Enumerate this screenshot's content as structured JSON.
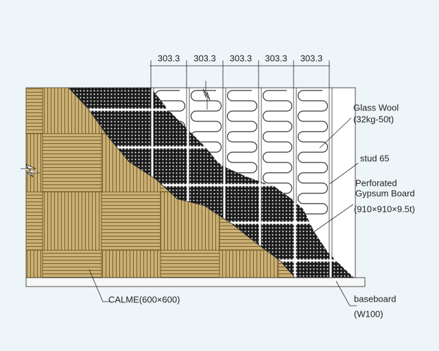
{
  "dimensions": [
    "303.3",
    "303.3",
    "303.3",
    "303.3",
    "303.3"
  ],
  "labels": {
    "glass_wool": "Glass Wool",
    "glass_wool_spec": "(32kg-50t)",
    "stud": "stud 65",
    "board_line1": "Perforated",
    "board_line2": "Gypsum Board",
    "board_spec": "(910×910×9.5t)",
    "calme": "CALME(600×600)",
    "baseboard": "baseboard",
    "baseboard_spec": "(W100)"
  }
}
